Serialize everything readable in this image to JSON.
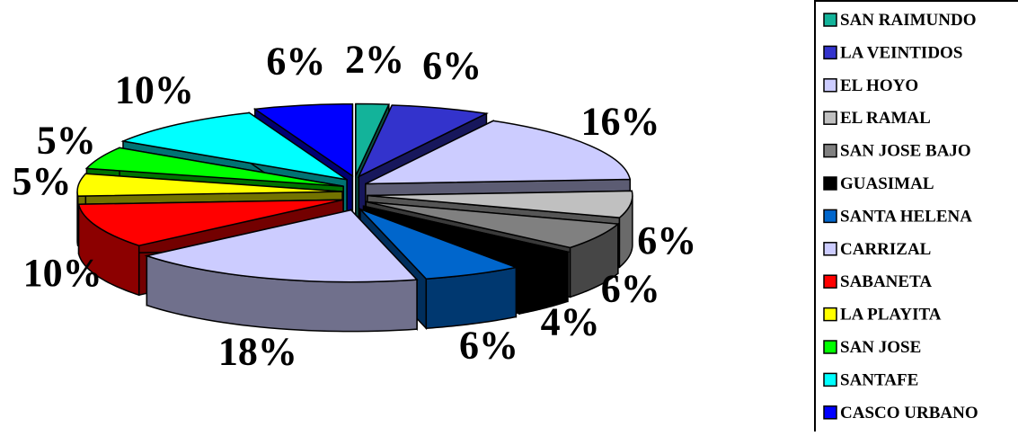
{
  "chart_data": {
    "type": "pie",
    "style": "3d-exploded",
    "legend_position": "right",
    "slices": [
      {
        "name": "SAN RAIMUNDO",
        "value": 2,
        "label": "2%",
        "color": "#13B39A"
      },
      {
        "name": "LA VEINTIDOS",
        "value": 6,
        "label": "6%",
        "color": "#3333CC"
      },
      {
        "name": "EL HOYO",
        "value": 16,
        "label": "16%",
        "color": "#CCCCFF"
      },
      {
        "name": "EL RAMAL",
        "value": 6,
        "label": "6%",
        "color": "#C0C0C0"
      },
      {
        "name": "SAN JOSE BAJO",
        "value": 6,
        "label": "6%",
        "color": "#808080"
      },
      {
        "name": "GUASIMAL",
        "value": 4,
        "label": "4%",
        "color": "#000000"
      },
      {
        "name": "SANTA HELENA",
        "value": 6,
        "label": "6%",
        "color": "#0066CC"
      },
      {
        "name": "CARRIZAL",
        "value": 18,
        "label": "18%",
        "color": "#CCCCFF"
      },
      {
        "name": "SABANETA",
        "value": 10,
        "label": "10%",
        "color": "#FF0000"
      },
      {
        "name": "LA PLAYITA",
        "value": 5,
        "label": "5%",
        "color": "#FFFF00"
      },
      {
        "name": "SAN JOSE",
        "value": 5,
        "label": "5%",
        "color": "#00FF00"
      },
      {
        "name": "SANTAFE",
        "value": 10,
        "label": "10%",
        "color": "#00FFFF"
      },
      {
        "name": "CASCO URBANO",
        "value": 6,
        "label": "6%",
        "color": "#0000FF"
      }
    ]
  }
}
